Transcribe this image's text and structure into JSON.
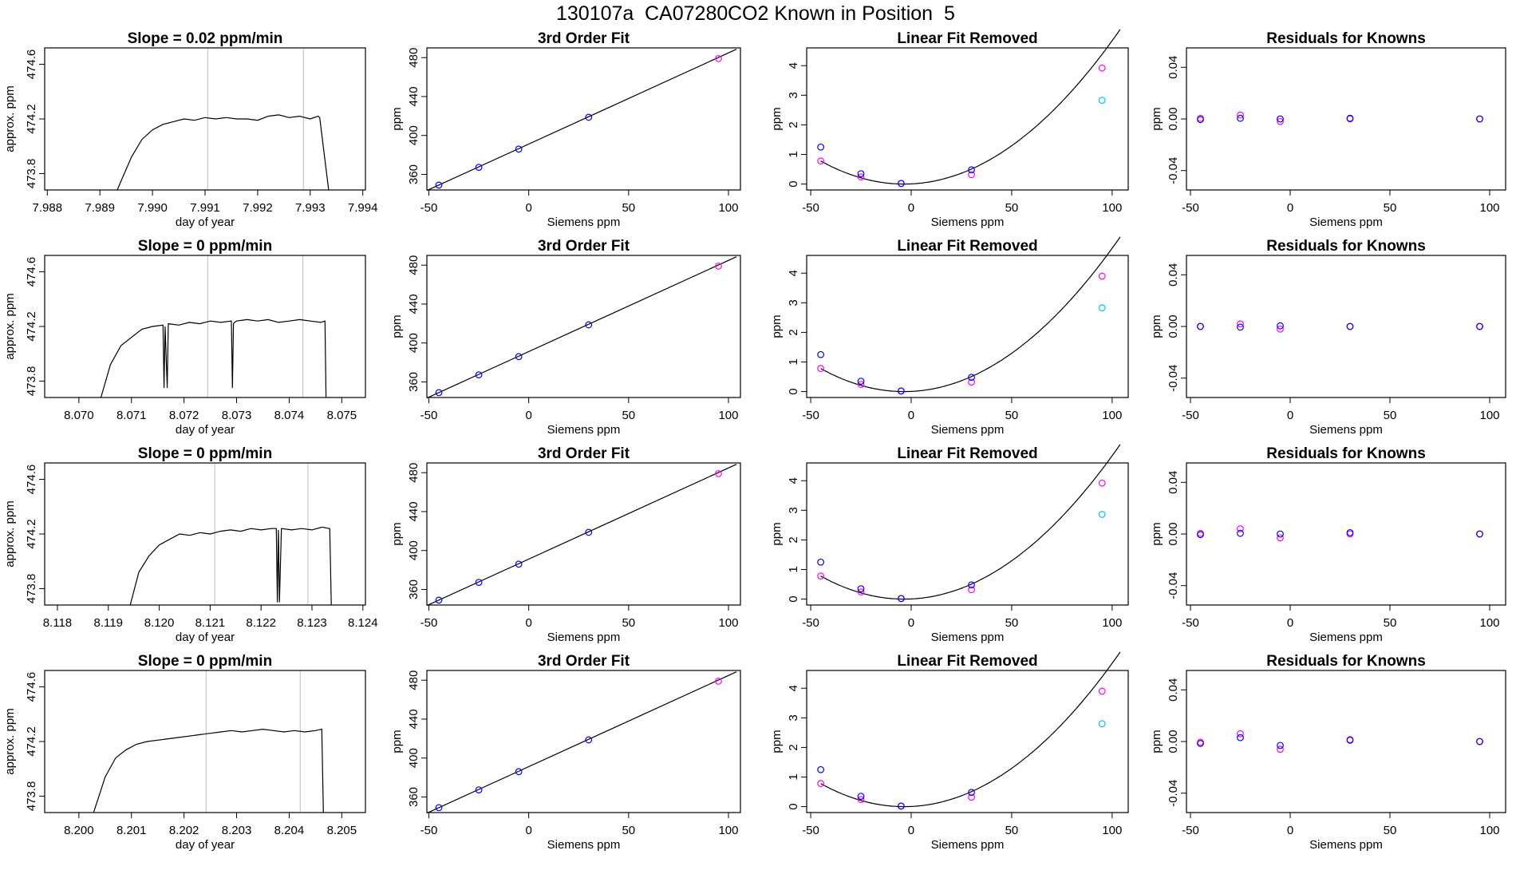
{
  "figure": {
    "title_parts": [
      "130107a",
      "CA07280",
      "CO2 Known in Position  5"
    ]
  },
  "colors": {
    "axis": "#000000",
    "trace": "#000000",
    "vline": "#bebebe",
    "point_blue": "#0000ff",
    "point_magenta": "#ff00ff",
    "point_cyan": "#00bfff",
    "fit_line": "#000000"
  },
  "chart_data": [
    {
      "type": "line",
      "row": 0,
      "col": 0,
      "title": "Slope =  0.02  ppm/min",
      "xlabel": "day of year",
      "ylabel": "approx. ppm",
      "xlim": [
        7.98795,
        7.99405
      ],
      "ylim": [
        473.68,
        474.72
      ],
      "xticks": [
        "7.988",
        "7.989",
        "7.990",
        "7.991",
        "7.992",
        "7.993",
        "7.994"
      ],
      "yticks": [
        "473.8",
        "474.2",
        "474.6"
      ],
      "vlines": [
        7.99105,
        7.99287
      ],
      "series": [
        {
          "values_x": [
            7.98933,
            7.9896,
            7.9898,
            7.99,
            7.9902,
            7.9904,
            7.9906,
            7.9908,
            7.991,
            7.9912,
            7.9914,
            7.9916,
            7.9918,
            7.992,
            7.9922,
            7.9924,
            7.9926,
            7.9928,
            7.993,
            7.99315,
            7.99318,
            7.99335
          ],
          "values_y": [
            473.6,
            473.92,
            474.05,
            474.12,
            474.16,
            474.18,
            474.2,
            474.19,
            474.21,
            474.2,
            474.21,
            474.2,
            474.2,
            474.19,
            474.22,
            474.23,
            474.21,
            474.22,
            474.2,
            474.22,
            474.21,
            473.6
          ]
        }
      ]
    },
    {
      "type": "scatter",
      "row": 0,
      "col": 1,
      "title": "3rd Order Fit",
      "xlabel": "Siemens ppm",
      "ylabel": "ppm",
      "xlim": [
        -51,
        106
      ],
      "ylim": [
        344,
        490
      ],
      "xticks": [
        "-50",
        "0",
        "50",
        "100"
      ],
      "yticks": [
        "360",
        "400",
        "440",
        "480"
      ],
      "fit": {
        "x0": -51,
        "y0": 343.4,
        "x1": 104,
        "y1": 488.6
      },
      "points_blue": [
        [
          -45,
          349
        ],
        [
          -25,
          367.3
        ],
        [
          -5,
          386
        ],
        [
          30,
          418.7
        ]
      ],
      "points_magenta": [
        [
          95,
          479
        ]
      ]
    },
    {
      "type": "scatter",
      "row": 0,
      "col": 2,
      "title": "Linear Fit Removed",
      "xlabel": "Siemens ppm",
      "ylabel": "ppm",
      "xlim": [
        -52,
        108
      ],
      "ylim": [
        -0.2,
        4.6
      ],
      "xticks": [
        "-50",
        "0",
        "50",
        "100"
      ],
      "yticks": [
        "0",
        "1",
        "2",
        "3",
        "4"
      ],
      "curve": {
        "a": 0.000452,
        "vertex": -3.5,
        "xmin": -45,
        "xmax": 104
      },
      "points_blue": [
        [
          -45,
          1.25
        ],
        [
          -25,
          0.35
        ],
        [
          -5,
          0.02
        ],
        [
          30,
          0.48
        ]
      ],
      "points_magenta": [
        [
          -45,
          0.78
        ],
        [
          -25,
          0.24
        ],
        [
          -5,
          0.02
        ],
        [
          30,
          0.32
        ],
        [
          95,
          3.92
        ]
      ],
      "points_cyan": [
        [
          95,
          2.83
        ]
      ]
    },
    {
      "type": "scatter",
      "row": 0,
      "col": 3,
      "title": "Residuals for Knowns",
      "xlabel": "Siemens ppm",
      "ylabel": "ppm",
      "xlim": [
        -52,
        108
      ],
      "ylim": [
        -0.055,
        0.055
      ],
      "xticks": [
        "-50",
        "0",
        "50",
        "100"
      ],
      "yticks": [
        "-0.04",
        "0.00",
        "0.04"
      ],
      "points_blue": [
        [
          -45,
          -0.0005
        ],
        [
          -25,
          0.0005
        ],
        [
          -5,
          0.0
        ],
        [
          30,
          0.0005
        ],
        [
          95,
          0.0
        ]
      ],
      "points_magenta": [
        [
          -45,
          0.0005
        ],
        [
          -25,
          0.003
        ],
        [
          -5,
          -0.002
        ],
        [
          30,
          0.0
        ],
        [
          95,
          0.0
        ]
      ]
    },
    {
      "type": "line",
      "row": 1,
      "col": 0,
      "title": "Slope =  0  ppm/min",
      "xlabel": "day of year",
      "ylabel": "approx. ppm",
      "xlim": [
        8.06935,
        8.07545
      ],
      "ylim": [
        473.68,
        474.72
      ],
      "xticks": [
        "8.070",
        "8.071",
        "8.072",
        "8.073",
        "8.074",
        "8.075"
      ],
      "yticks": [
        "473.8",
        "474.2",
        "474.6"
      ],
      "vlines": [
        8.07245,
        8.07426
      ],
      "series": [
        {
          "values_x": [
            8.07042,
            8.0706,
            8.0708,
            8.071,
            8.0712,
            8.0714,
            8.0716,
            8.07162,
            8.07164,
            8.07168,
            8.0717,
            8.0719,
            8.0721,
            8.0723,
            8.0725,
            8.0727,
            8.0729,
            8.07292,
            8.07294,
            8.07296,
            8.073,
            8.0732,
            8.0734,
            8.0736,
            8.0738,
            8.074,
            8.0742,
            8.0744,
            8.0746,
            8.07468,
            8.0747
          ],
          "values_y": [
            473.6,
            473.92,
            474.06,
            474.12,
            474.18,
            474.2,
            474.21,
            473.75,
            474.2,
            473.75,
            474.22,
            474.21,
            474.23,
            474.22,
            474.24,
            474.23,
            474.24,
            473.75,
            474.22,
            474.23,
            474.24,
            474.25,
            474.24,
            474.25,
            474.23,
            474.24,
            474.25,
            474.24,
            474.23,
            474.24,
            473.6
          ]
        }
      ]
    },
    {
      "type": "scatter",
      "row": 1,
      "col": 1,
      "title": "3rd Order Fit",
      "xlabel": "Siemens ppm",
      "ylabel": "ppm",
      "xlim": [
        -51,
        106
      ],
      "ylim": [
        344,
        490
      ],
      "xticks": [
        "-50",
        "0",
        "50",
        "100"
      ],
      "yticks": [
        "360",
        "400",
        "440",
        "480"
      ],
      "fit": {
        "x0": -51,
        "y0": 343.4,
        "x1": 104,
        "y1": 488.6
      },
      "points_blue": [
        [
          -45,
          349
        ],
        [
          -25,
          367.3
        ],
        [
          -5,
          386
        ],
        [
          30,
          418.7
        ]
      ],
      "points_magenta": [
        [
          95,
          479
        ]
      ]
    },
    {
      "type": "scatter",
      "row": 1,
      "col": 2,
      "title": "Linear Fit Removed",
      "xlabel": "Siemens ppm",
      "ylabel": "ppm",
      "xlim": [
        -52,
        108
      ],
      "ylim": [
        -0.2,
        4.6
      ],
      "xticks": [
        "-50",
        "0",
        "50",
        "100"
      ],
      "yticks": [
        "0",
        "1",
        "2",
        "3",
        "4"
      ],
      "curve": {
        "a": 0.000452,
        "vertex": -3.5,
        "xmin": -45,
        "xmax": 104
      },
      "points_blue": [
        [
          -45,
          1.25
        ],
        [
          -25,
          0.35
        ],
        [
          -5,
          0.02
        ],
        [
          30,
          0.48
        ]
      ],
      "points_magenta": [
        [
          -45,
          0.78
        ],
        [
          -25,
          0.24
        ],
        [
          -5,
          0.02
        ],
        [
          30,
          0.32
        ],
        [
          95,
          3.9
        ]
      ],
      "points_cyan": [
        [
          95,
          2.83
        ]
      ]
    },
    {
      "type": "scatter",
      "row": 1,
      "col": 3,
      "title": "Residuals for Knowns",
      "xlabel": "Siemens ppm",
      "ylabel": "ppm",
      "xlim": [
        -52,
        108
      ],
      "ylim": [
        -0.055,
        0.055
      ],
      "xticks": [
        "-50",
        "0",
        "50",
        "100"
      ],
      "yticks": [
        "-0.04",
        "0.00",
        "0.04"
      ],
      "points_blue": [
        [
          -45,
          0.0
        ],
        [
          -25,
          -0.0005
        ],
        [
          -5,
          0.0005
        ],
        [
          30,
          0.0
        ],
        [
          95,
          0.0
        ]
      ],
      "points_magenta": [
        [
          -45,
          0.0
        ],
        [
          -25,
          0.002
        ],
        [
          -5,
          -0.002
        ],
        [
          30,
          0.0
        ],
        [
          95,
          0.0
        ]
      ]
    },
    {
      "type": "line",
      "row": 2,
      "col": 0,
      "title": "Slope =  0  ppm/min",
      "xlabel": "day of year",
      "ylabel": "approx. ppm",
      "xlim": [
        8.11775,
        8.12405
      ],
      "ylim": [
        473.68,
        474.72
      ],
      "xticks": [
        "8.118",
        "8.119",
        "8.120",
        "8.121",
        "8.122",
        "8.123",
        "8.124"
      ],
      "yticks": [
        "473.8",
        "474.2",
        "474.6"
      ],
      "vlines": [
        8.12109,
        8.12292
      ],
      "series": [
        {
          "values_x": [
            8.11943,
            8.1196,
            8.1198,
            8.12,
            8.1202,
            8.1204,
            8.1206,
            8.1208,
            8.121,
            8.1212,
            8.1214,
            8.1216,
            8.1218,
            8.122,
            8.1222,
            8.1223,
            8.12232,
            8.12234,
            8.12236,
            8.1224,
            8.1226,
            8.1228,
            8.123,
            8.1232,
            8.12335,
            8.12338
          ],
          "values_y": [
            473.6,
            473.92,
            474.04,
            474.12,
            474.16,
            474.2,
            474.19,
            474.21,
            474.2,
            474.22,
            474.23,
            474.22,
            474.24,
            474.23,
            474.24,
            474.24,
            473.7,
            474.23,
            473.7,
            474.24,
            474.23,
            474.24,
            474.23,
            474.25,
            474.24,
            473.6
          ]
        }
      ]
    },
    {
      "type": "scatter",
      "row": 2,
      "col": 1,
      "title": "3rd Order Fit",
      "xlabel": "Siemens ppm",
      "ylabel": "ppm",
      "xlim": [
        -51,
        106
      ],
      "ylim": [
        344,
        490
      ],
      "xticks": [
        "-50",
        "0",
        "50",
        "100"
      ],
      "yticks": [
        "360",
        "400",
        "440",
        "480"
      ],
      "fit": {
        "x0": -51,
        "y0": 343.4,
        "x1": 104,
        "y1": 488.6
      },
      "points_blue": [
        [
          -45,
          349
        ],
        [
          -25,
          367.3
        ],
        [
          -5,
          386
        ],
        [
          30,
          418.7
        ]
      ],
      "points_magenta": [
        [
          95,
          479
        ]
      ]
    },
    {
      "type": "scatter",
      "row": 2,
      "col": 2,
      "title": "Linear Fit Removed",
      "xlabel": "Siemens ppm",
      "ylabel": "ppm",
      "xlim": [
        -52,
        108
      ],
      "ylim": [
        -0.2,
        4.6
      ],
      "xticks": [
        "-50",
        "0",
        "50",
        "100"
      ],
      "yticks": [
        "0",
        "1",
        "2",
        "3",
        "4"
      ],
      "curve": {
        "a": 0.000452,
        "vertex": -3.5,
        "xmin": -45,
        "xmax": 104
      },
      "points_blue": [
        [
          -45,
          1.25
        ],
        [
          -25,
          0.35
        ],
        [
          -5,
          0.02
        ],
        [
          30,
          0.48
        ]
      ],
      "points_magenta": [
        [
          -45,
          0.78
        ],
        [
          -25,
          0.24
        ],
        [
          -5,
          0.02
        ],
        [
          30,
          0.32
        ],
        [
          95,
          3.92
        ]
      ],
      "points_cyan": [
        [
          95,
          2.86
        ]
      ]
    },
    {
      "type": "scatter",
      "row": 2,
      "col": 3,
      "title": "Residuals for Knowns",
      "xlabel": "Siemens ppm",
      "ylabel": "ppm",
      "xlim": [
        -52,
        108
      ],
      "ylim": [
        -0.055,
        0.055
      ],
      "xticks": [
        "-50",
        "0",
        "50",
        "100"
      ],
      "yticks": [
        "-0.04",
        "0.00",
        "0.04"
      ],
      "points_blue": [
        [
          -45,
          -0.0005
        ],
        [
          -25,
          0.0005
        ],
        [
          -5,
          0.0
        ],
        [
          30,
          0.001
        ],
        [
          95,
          0.0
        ]
      ],
      "points_magenta": [
        [
          -45,
          0.0005
        ],
        [
          -25,
          0.004
        ],
        [
          -5,
          -0.003
        ],
        [
          30,
          0.0
        ],
        [
          95,
          0.0
        ]
      ]
    },
    {
      "type": "line",
      "row": 3,
      "col": 0,
      "title": "Slope =  0  ppm/min",
      "xlabel": "day of year",
      "ylabel": "approx. ppm",
      "xlim": [
        8.19935,
        8.20545
      ],
      "ylim": [
        473.68,
        474.72
      ],
      "xticks": [
        "8.200",
        "8.201",
        "8.202",
        "8.203",
        "8.204",
        "8.205"
      ],
      "yticks": [
        "473.8",
        "474.2",
        "474.6"
      ],
      "vlines": [
        8.20242,
        8.20421
      ],
      "series": [
        {
          "values_x": [
            8.20028,
            8.2005,
            8.2007,
            8.2009,
            8.2011,
            8.2013,
            8.2015,
            8.2017,
            8.2019,
            8.2021,
            8.2023,
            8.2025,
            8.2027,
            8.2029,
            8.2031,
            8.2033,
            8.2035,
            8.2037,
            8.2039,
            8.2041,
            8.2043,
            8.2045,
            8.20462,
            8.20465
          ],
          "values_y": [
            473.6,
            473.94,
            474.08,
            474.14,
            474.18,
            474.2,
            474.21,
            474.22,
            474.23,
            474.24,
            474.25,
            474.26,
            474.27,
            474.28,
            474.27,
            474.28,
            474.29,
            474.28,
            474.27,
            474.28,
            474.27,
            474.28,
            474.29,
            473.6
          ]
        }
      ]
    },
    {
      "type": "scatter",
      "row": 3,
      "col": 1,
      "title": "3rd Order Fit",
      "xlabel": "Siemens ppm",
      "ylabel": "ppm",
      "xlim": [
        -51,
        106
      ],
      "ylim": [
        344,
        490
      ],
      "xticks": [
        "-50",
        "0",
        "50",
        "100"
      ],
      "yticks": [
        "360",
        "400",
        "440",
        "480"
      ],
      "fit": {
        "x0": -51,
        "y0": 343.4,
        "x1": 104,
        "y1": 488.6
      },
      "points_blue": [
        [
          -45,
          349
        ],
        [
          -25,
          367.3
        ],
        [
          -5,
          386
        ],
        [
          30,
          418.7
        ]
      ],
      "points_magenta": [
        [
          95,
          479
        ]
      ]
    },
    {
      "type": "scatter",
      "row": 3,
      "col": 2,
      "title": "Linear Fit Removed",
      "xlabel": "Siemens ppm",
      "ylabel": "ppm",
      "xlim": [
        -52,
        108
      ],
      "ylim": [
        -0.2,
        4.6
      ],
      "xticks": [
        "-50",
        "0",
        "50",
        "100"
      ],
      "yticks": [
        "0",
        "1",
        "2",
        "3",
        "4"
      ],
      "curve": {
        "a": 0.000452,
        "vertex": -3.5,
        "xmin": -45,
        "xmax": 104
      },
      "points_blue": [
        [
          -45,
          1.25
        ],
        [
          -25,
          0.35
        ],
        [
          -5,
          0.02
        ],
        [
          30,
          0.48
        ]
      ],
      "points_magenta": [
        [
          -45,
          0.78
        ],
        [
          -25,
          0.24
        ],
        [
          -5,
          0.02
        ],
        [
          30,
          0.32
        ],
        [
          95,
          3.9
        ]
      ],
      "points_cyan": [
        [
          95,
          2.8
        ]
      ]
    },
    {
      "type": "scatter",
      "row": 3,
      "col": 3,
      "title": "Residuals for Knowns",
      "xlabel": "Siemens ppm",
      "ylabel": "ppm",
      "xlim": [
        -52,
        108
      ],
      "ylim": [
        -0.055,
        0.055
      ],
      "xticks": [
        "-50",
        "0",
        "50",
        "100"
      ],
      "yticks": [
        "-0.04",
        "0.00",
        "0.04"
      ],
      "points_blue": [
        [
          -45,
          -0.0015
        ],
        [
          -25,
          0.003
        ],
        [
          -5,
          -0.003
        ],
        [
          30,
          0.001
        ],
        [
          95,
          0.0
        ]
      ],
      "points_magenta": [
        [
          -45,
          -0.0005
        ],
        [
          -25,
          0.006
        ],
        [
          -5,
          -0.006
        ],
        [
          30,
          0.0015
        ],
        [
          95,
          0.0
        ]
      ]
    }
  ]
}
